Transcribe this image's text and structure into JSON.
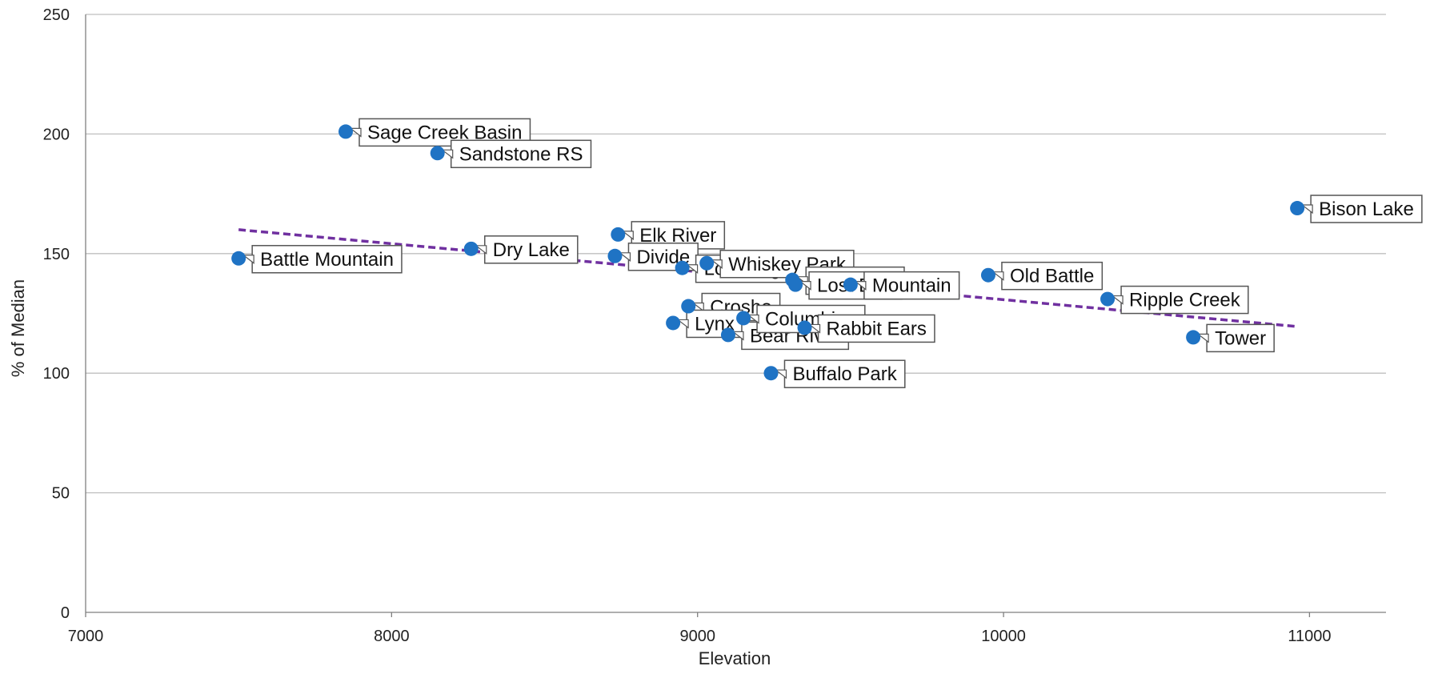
{
  "chart_data": {
    "type": "scatter",
    "title": "",
    "xlabel": "Elevation",
    "ylabel": "% of Median",
    "xlim": [
      7000,
      11250
    ],
    "ylim": [
      0,
      250
    ],
    "x_ticks": [
      "7000",
      "8000",
      "9000",
      "10000",
      "11000"
    ],
    "y_ticks": [
      "0",
      "50",
      "100",
      "150",
      "200",
      "250"
    ],
    "grid": true,
    "legend": "none",
    "point_color": "#1f73c4",
    "trendline": {
      "style": "dashed",
      "color": "#7030a0",
      "x": [
        7500,
        10960
      ],
      "y": [
        160,
        119.5
      ]
    },
    "points": [
      {
        "name": "Battle Mountain",
        "x": 7500,
        "y": 148
      },
      {
        "name": "Sage Creek Basin",
        "x": 7850,
        "y": 201
      },
      {
        "name": "Sandstone RS",
        "x": 8150,
        "y": 192
      },
      {
        "name": "Dry Lake",
        "x": 8260,
        "y": 152
      },
      {
        "name": "Elk River",
        "x": 8740,
        "y": 158
      },
      {
        "name": "Divide",
        "x": 8730,
        "y": 149
      },
      {
        "name": "Lost Dog",
        "x": 8950,
        "y": 144
      },
      {
        "name": "Whiskey Park",
        "x": 9030,
        "y": 146
      },
      {
        "name": "Crosho",
        "x": 8970,
        "y": 128
      },
      {
        "name": "Lynx",
        "x": 8920,
        "y": 121
      },
      {
        "name": "Bear River",
        "x": 9100,
        "y": 116
      },
      {
        "name": "Columbine",
        "x": 9150,
        "y": 123
      },
      {
        "name": "Rabbit Ears",
        "x": 9350,
        "y": 119
      },
      {
        "name": "Buffalo Park",
        "x": 9240,
        "y": 100
      },
      {
        "name": "Elk Ridge",
        "x": 9310,
        "y": 139
      },
      {
        "name": "Lost Dog",
        "x": 9320,
        "y": 137
      },
      {
        "name": "Mountain",
        "x": 9500,
        "y": 137
      },
      {
        "name": "Old Battle",
        "x": 9950,
        "y": 141
      },
      {
        "name": "Ripple Creek",
        "x": 10340,
        "y": 131
      },
      {
        "name": "Tower",
        "x": 10620,
        "y": 115
      },
      {
        "name": "Bison Lake",
        "x": 10960,
        "y": 169
      }
    ]
  }
}
